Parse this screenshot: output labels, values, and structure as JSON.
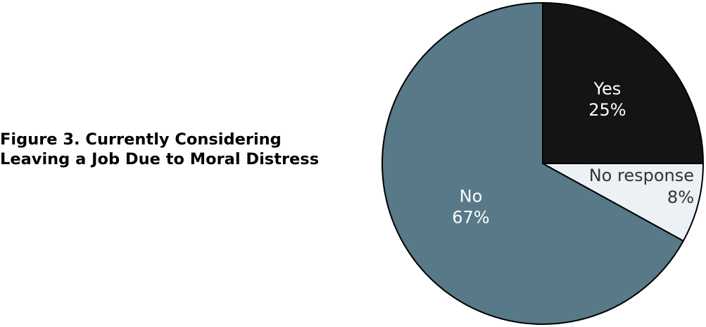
{
  "chart_data": {
    "type": "pie",
    "title_lines": [
      "Figure 3. Currently Considering",
      "Leaving a Job Due to Moral Distress"
    ],
    "slices": [
      {
        "label": "Yes",
        "value": 25,
        "value_label": "25%",
        "color": "#141414",
        "text_color": "#ffffff"
      },
      {
        "label": "No response",
        "value": 8,
        "value_label": "8%",
        "color": "#ecf1f6",
        "text_color": "#333333"
      },
      {
        "label": "No",
        "value": 67,
        "value_label": "67%",
        "color": "#587987",
        "text_color": "#ffffff"
      }
    ],
    "start_angle_deg": 0,
    "direction": "clockwise",
    "legend": "none",
    "edge_color": "#000000"
  }
}
